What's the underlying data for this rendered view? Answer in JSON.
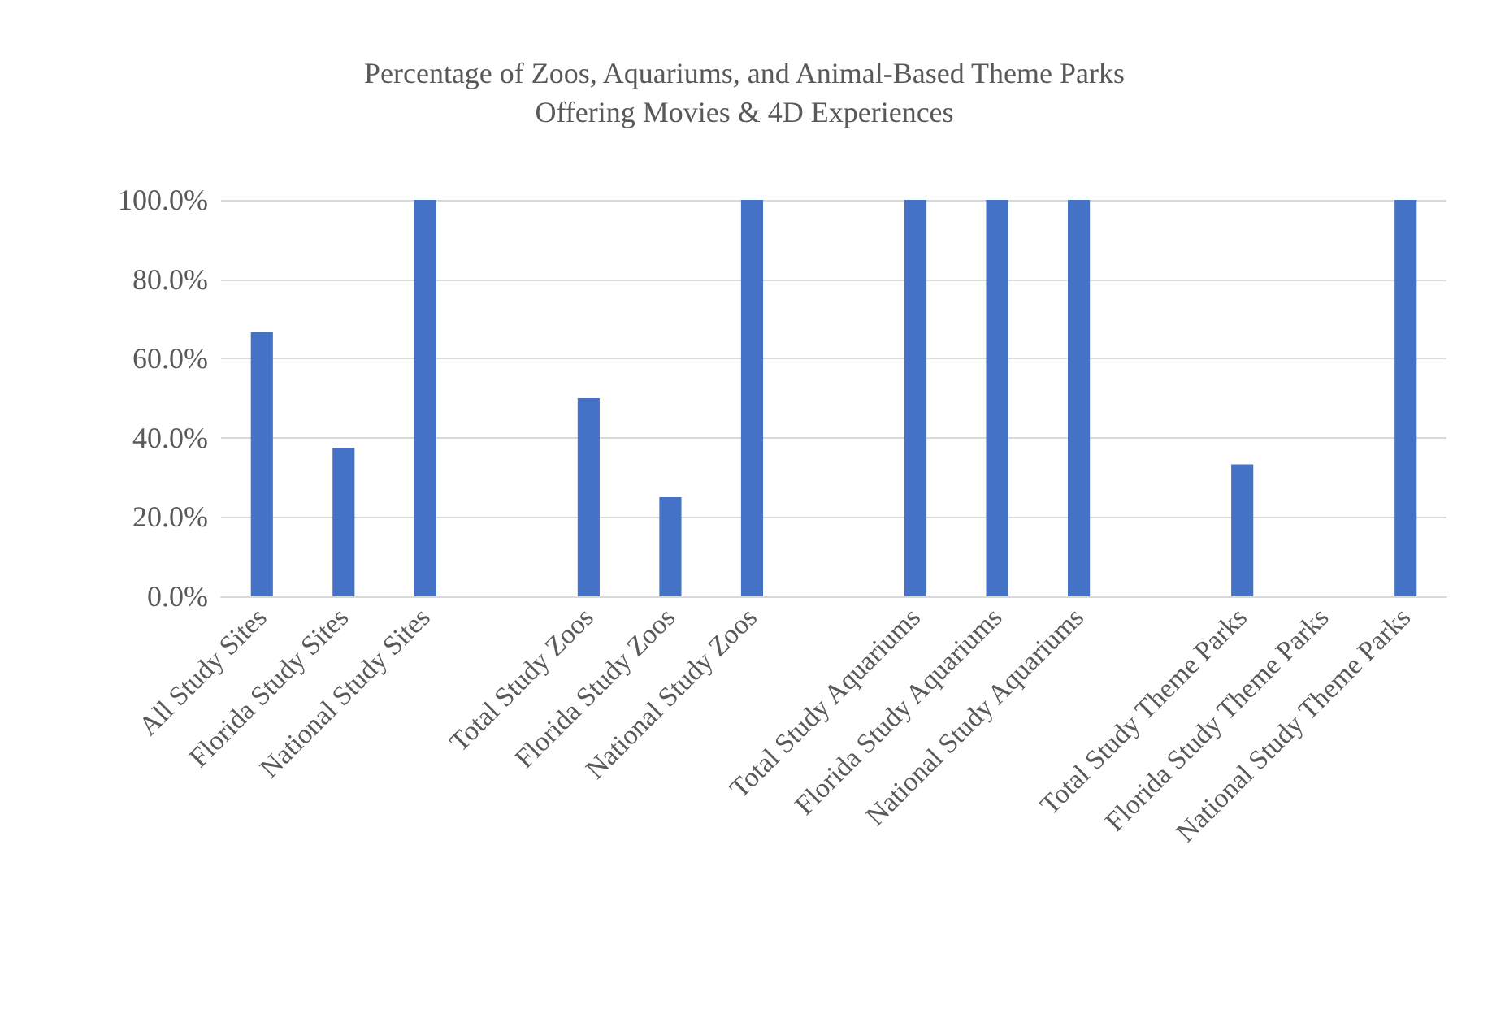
{
  "chart_data": {
    "type": "bar",
    "title": "Percentage of Zoos, Aquariums, and Animal-Based Theme Parks\nOffering Movies & 4D Experiences",
    "categories": [
      "All Study Sites",
      "Florida Study Sites",
      "National Study Sites",
      null,
      "Total Study Zoos",
      "Florida Study Zoos",
      "National Study Zoos",
      null,
      "Total Study Aquariums",
      "Florida Study Aquariums",
      "National Study Aquariums",
      null,
      "Total Study Theme Parks",
      "Florida Study Theme Parks",
      "National Study Theme Parks"
    ],
    "values": [
      66.7,
      37.5,
      100,
      null,
      50,
      25,
      100,
      null,
      100,
      100,
      100,
      null,
      33.3,
      0,
      100
    ],
    "color": "#4472c4",
    "ylim": [
      0,
      100
    ],
    "yticks": [
      {
        "value": 0,
        "label": "0.0%"
      },
      {
        "value": 20,
        "label": "20.0%"
      },
      {
        "value": 40,
        "label": "40.0%"
      },
      {
        "value": 60,
        "label": "60.0%"
      },
      {
        "value": 80,
        "label": "80.0%"
      },
      {
        "value": 100,
        "label": "100.0%"
      }
    ],
    "grid": true
  }
}
